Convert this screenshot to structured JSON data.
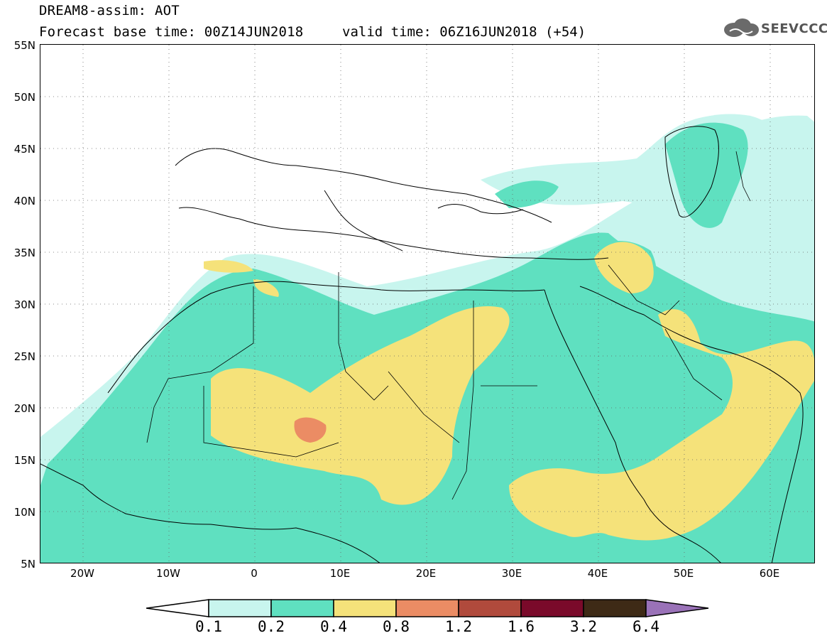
{
  "title": "DREAM8-assim: AOT",
  "base_time": "Forecast base time: 00Z14JUN2018",
  "valid_time": "valid time: 06Z16JUN2018 (+54)",
  "logo_text": "SEEVCCC",
  "latitudes": [
    "55N",
    "50N",
    "45N",
    "40N",
    "35N",
    "30N",
    "25N",
    "20N",
    "15N",
    "10N",
    "5N"
  ],
  "longitudes": [
    "20W",
    "10W",
    "0",
    "10E",
    "20E",
    "30E",
    "40E",
    "50E",
    "60E"
  ],
  "colorbar": {
    "labels": [
      "0.1",
      "0.2",
      "0.4",
      "0.8",
      "1.2",
      "1.6",
      "3.2",
      "6.4"
    ],
    "colors": [
      "#ffffff",
      "#c8f5ee",
      "#5fe0c0",
      "#f5e27a",
      "#eb8c64",
      "#b04a3c",
      "#7a0a2a",
      "#3e2a16",
      "#9a72b8"
    ]
  }
}
